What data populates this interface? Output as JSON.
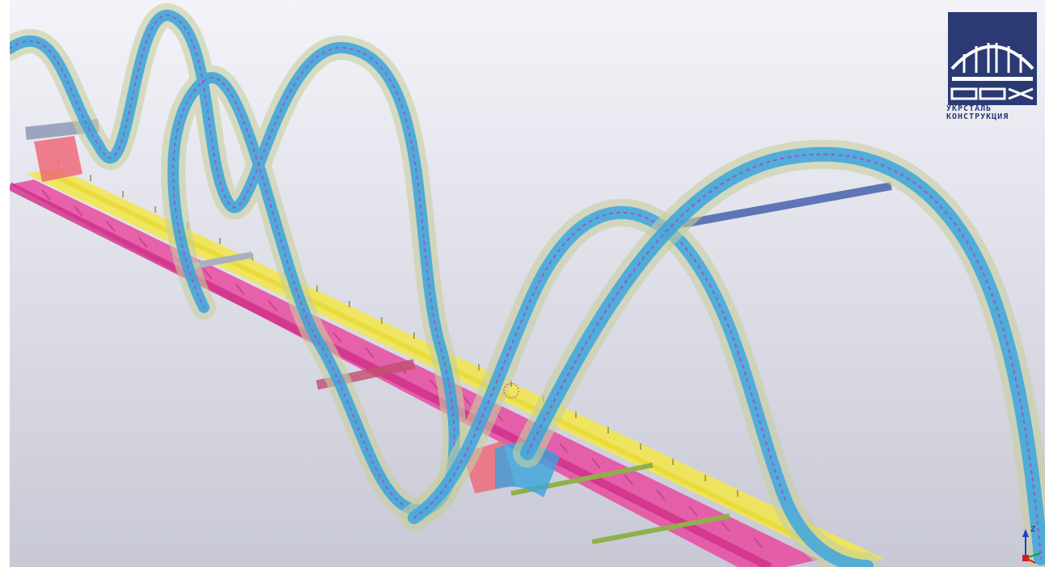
{
  "brand": {
    "line1": "УКРСТАЛЬ",
    "line2": "КОНСТРУКЦИЯ",
    "color": "#2b3a73"
  },
  "viewport": {
    "background_top": "#f2f2f8",
    "background_bottom": "#c9cad6",
    "ribbon_color": "#3aa4dd",
    "ribbon_translucent": "#b7c39a",
    "deck_magenta": "#e0409a",
    "deck_yellow": "#f5ea4a",
    "detail_purple": "#9b52c8"
  },
  "axis_indicator": {
    "z_label": "Z",
    "icon": "xyz-axis-icon"
  },
  "cursor": {
    "icon": "selection-cursor-icon"
  }
}
